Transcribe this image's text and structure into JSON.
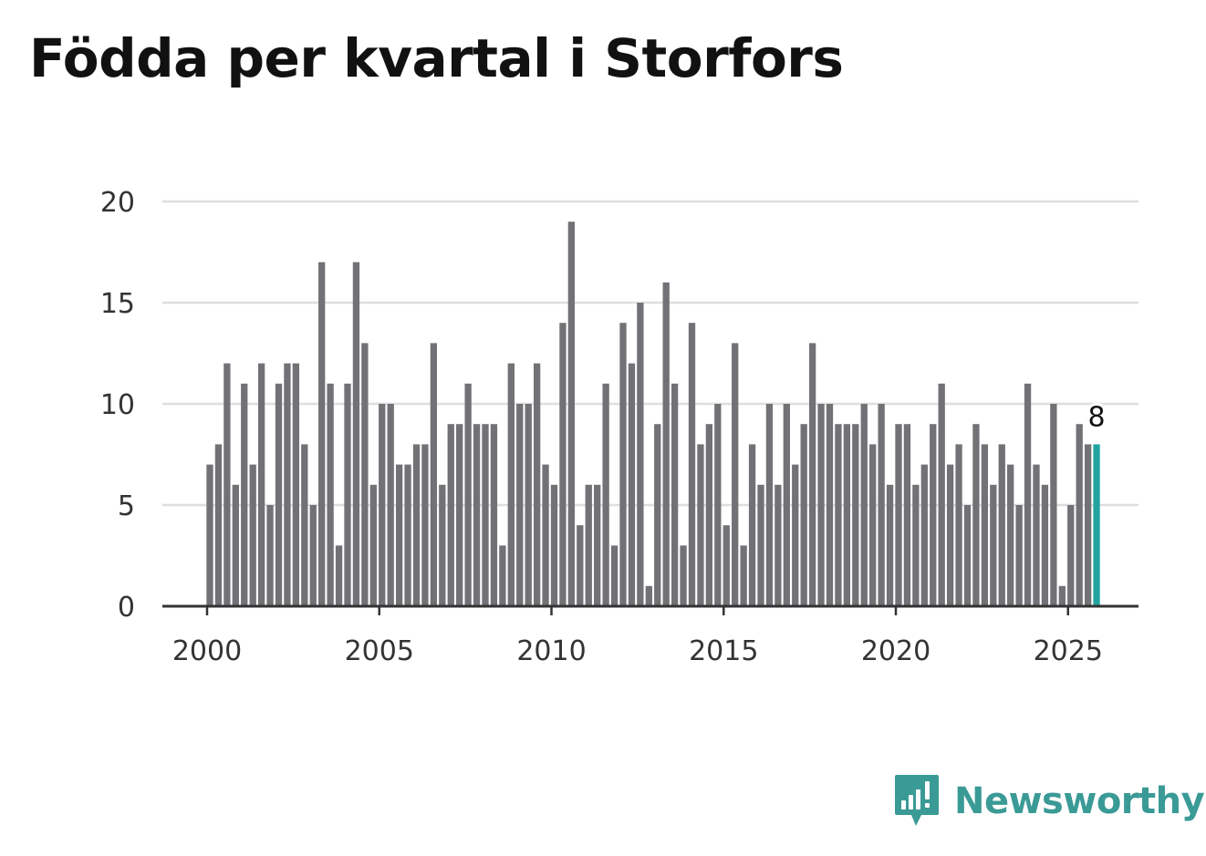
{
  "title": "Födda per kvartal i Storfors",
  "brand": {
    "name": "Newsworthy",
    "logo_icon": "newsworthy-logo-icon",
    "color": "#3a9a96"
  },
  "chart_data": {
    "type": "bar",
    "title": "Födda per kvartal i Storfors",
    "xlabel": "",
    "ylabel": "",
    "start_year": 2000,
    "periods_per_year": 4,
    "ylim": [
      0,
      20
    ],
    "yticks": [
      0,
      5,
      10,
      15,
      20
    ],
    "ytick_labels": [
      "0",
      "5",
      "10",
      "15",
      "20"
    ],
    "xticks": [
      2000,
      2005,
      2010,
      2015,
      2020,
      2025
    ],
    "xtick_labels": [
      "2000",
      "2005",
      "2010",
      "2015",
      "2020",
      "2025"
    ],
    "xlim": [
      2000,
      2027
    ],
    "grid": true,
    "bar_color": "#727175",
    "highlight_color": "#23a39f",
    "highlight_index": 103,
    "highlight_label": "8",
    "values": [
      7,
      8,
      12,
      6,
      11,
      7,
      12,
      5,
      11,
      12,
      12,
      8,
      5,
      17,
      11,
      3,
      11,
      17,
      13,
      6,
      10,
      10,
      7,
      7,
      8,
      8,
      13,
      6,
      9,
      9,
      11,
      9,
      9,
      9,
      3,
      12,
      10,
      10,
      12,
      7,
      6,
      14,
      19,
      4,
      6,
      6,
      11,
      3,
      14,
      12,
      15,
      1,
      9,
      16,
      11,
      3,
      14,
      8,
      9,
      10,
      4,
      13,
      3,
      8,
      6,
      10,
      6,
      10,
      7,
      9,
      13,
      10,
      10,
      9,
      9,
      9,
      10,
      8,
      10,
      6,
      9,
      9,
      6,
      7,
      9,
      11,
      7,
      8,
      5,
      9,
      8,
      6,
      8,
      7,
      5,
      11,
      7,
      6,
      10,
      1,
      5,
      9,
      8,
      8
    ]
  }
}
